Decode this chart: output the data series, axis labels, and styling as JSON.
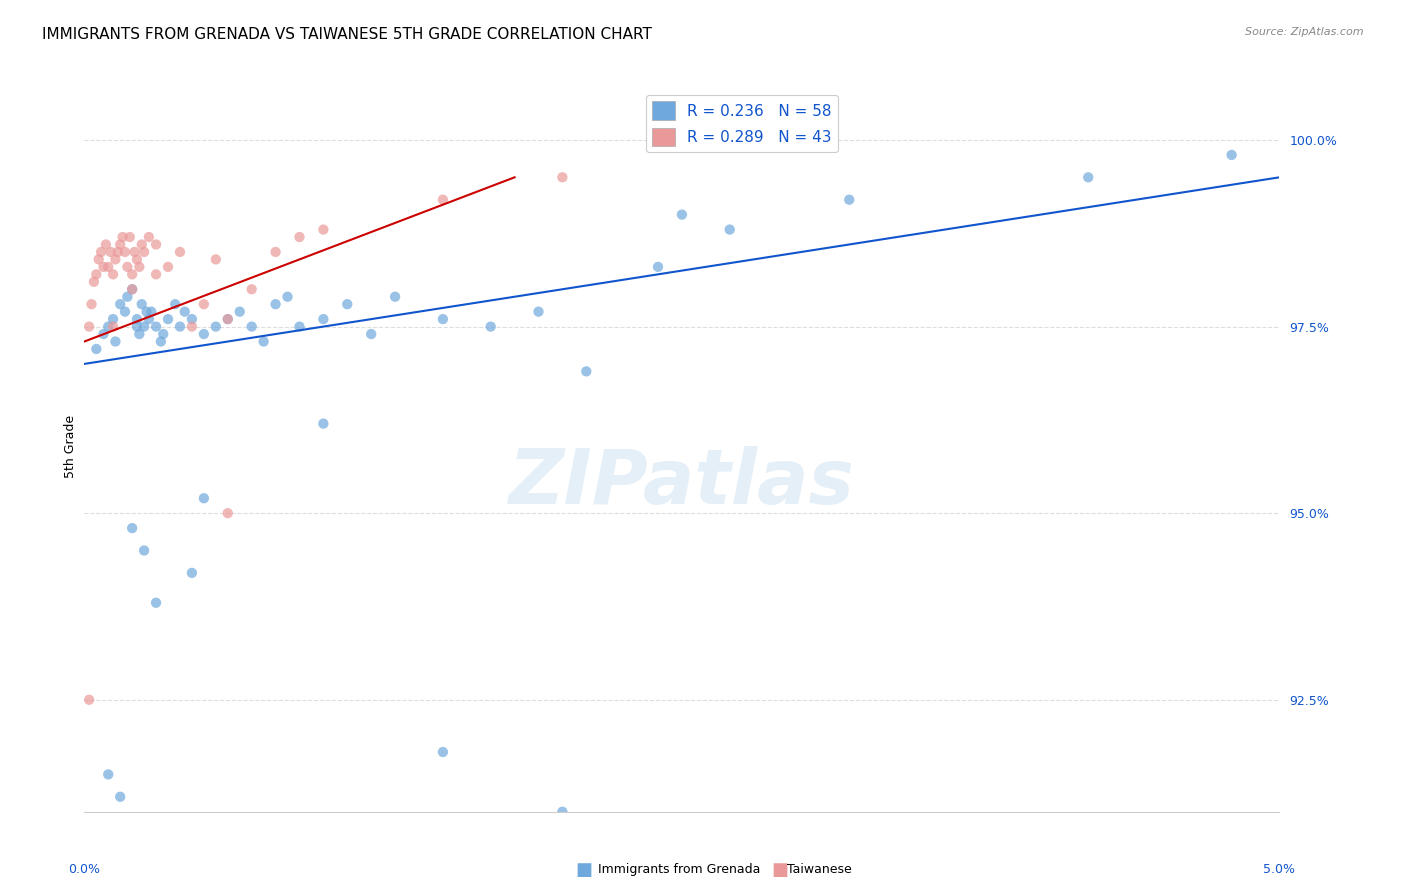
{
  "title": "IMMIGRANTS FROM GRENADA VS TAIWANESE 5TH GRADE CORRELATION CHART",
  "source": "Source: ZipAtlas.com",
  "ylabel": "5th Grade",
  "x_range": [
    0.0,
    5.0
  ],
  "y_range": [
    91.0,
    100.8
  ],
  "legend_blue_label": "R = 0.236   N = 58",
  "legend_pink_label": "R = 0.289   N = 43",
  "blue_color": "#6fa8dc",
  "pink_color": "#ea9999",
  "blue_line_color": "#1155cc",
  "pink_line_color": "#cc0000",
  "watermark": "ZIPatlas",
  "blue_scatter_x": [
    0.05,
    0.08,
    0.1,
    0.12,
    0.13,
    0.15,
    0.17,
    0.18,
    0.2,
    0.22,
    0.22,
    0.23,
    0.24,
    0.25,
    0.26,
    0.27,
    0.28,
    0.3,
    0.32,
    0.33,
    0.35,
    0.38,
    0.4,
    0.42,
    0.45,
    0.5,
    0.55,
    0.6,
    0.65,
    0.7,
    0.75,
    0.8,
    0.85,
    0.9,
    1.0,
    1.1,
    1.2,
    1.3,
    1.5,
    1.7,
    1.9,
    2.1,
    2.4,
    2.5,
    2.7,
    3.2,
    4.2,
    4.8,
    0.1,
    0.15,
    0.2,
    0.25,
    0.3,
    0.45,
    0.5,
    1.0,
    1.5,
    2.0
  ],
  "blue_scatter_y": [
    97.2,
    97.4,
    97.5,
    97.6,
    97.3,
    97.8,
    97.7,
    97.9,
    98.0,
    97.5,
    97.6,
    97.4,
    97.8,
    97.5,
    97.7,
    97.6,
    97.7,
    97.5,
    97.3,
    97.4,
    97.6,
    97.8,
    97.5,
    97.7,
    97.6,
    97.4,
    97.5,
    97.6,
    97.7,
    97.5,
    97.3,
    97.8,
    97.9,
    97.5,
    97.6,
    97.8,
    97.4,
    97.9,
    97.6,
    97.5,
    97.7,
    96.9,
    98.3,
    99.0,
    98.8,
    99.2,
    99.5,
    99.8,
    91.5,
    91.2,
    94.8,
    94.5,
    93.8,
    94.2,
    95.2,
    96.2,
    91.8,
    91.0
  ],
  "pink_scatter_x": [
    0.02,
    0.03,
    0.04,
    0.05,
    0.06,
    0.07,
    0.08,
    0.09,
    0.1,
    0.11,
    0.12,
    0.13,
    0.14,
    0.15,
    0.16,
    0.17,
    0.18,
    0.19,
    0.2,
    0.21,
    0.22,
    0.23,
    0.24,
    0.25,
    0.27,
    0.3,
    0.35,
    0.4,
    0.45,
    0.5,
    0.6,
    0.7,
    0.8,
    0.9,
    1.0,
    1.5,
    2.0,
    0.12,
    0.2,
    0.3,
    0.55,
    0.6,
    0.02
  ],
  "pink_scatter_y": [
    97.5,
    97.8,
    98.1,
    98.2,
    98.4,
    98.5,
    98.3,
    98.6,
    98.3,
    98.5,
    98.2,
    98.4,
    98.5,
    98.6,
    98.7,
    98.5,
    98.3,
    98.7,
    98.2,
    98.5,
    98.4,
    98.3,
    98.6,
    98.5,
    98.7,
    98.6,
    98.3,
    98.5,
    97.5,
    97.8,
    97.6,
    98.0,
    98.5,
    98.7,
    98.8,
    99.2,
    99.5,
    97.5,
    98.0,
    98.2,
    98.4,
    95.0,
    92.5
  ],
  "blue_line_x": [
    0.0,
    5.0
  ],
  "blue_line_y": [
    97.0,
    99.5
  ],
  "pink_line_x": [
    0.0,
    1.8
  ],
  "pink_line_y": [
    97.3,
    99.5
  ],
  "y_tick_positions": [
    92.5,
    95.0,
    97.5,
    100.0
  ],
  "y_tick_labels": [
    "92.5%",
    "95.0%",
    "97.5%",
    "100.0%"
  ],
  "x_tick_positions": [
    0.0,
    1.0,
    2.0,
    3.0,
    4.0,
    5.0
  ],
  "background_color": "#ffffff",
  "grid_color": "#dddddd",
  "title_fontsize": 11,
  "axis_label_fontsize": 9,
  "tick_fontsize": 9,
  "legend_fontsize": 11,
  "marker_size": 55,
  "marker_alpha": 0.7
}
